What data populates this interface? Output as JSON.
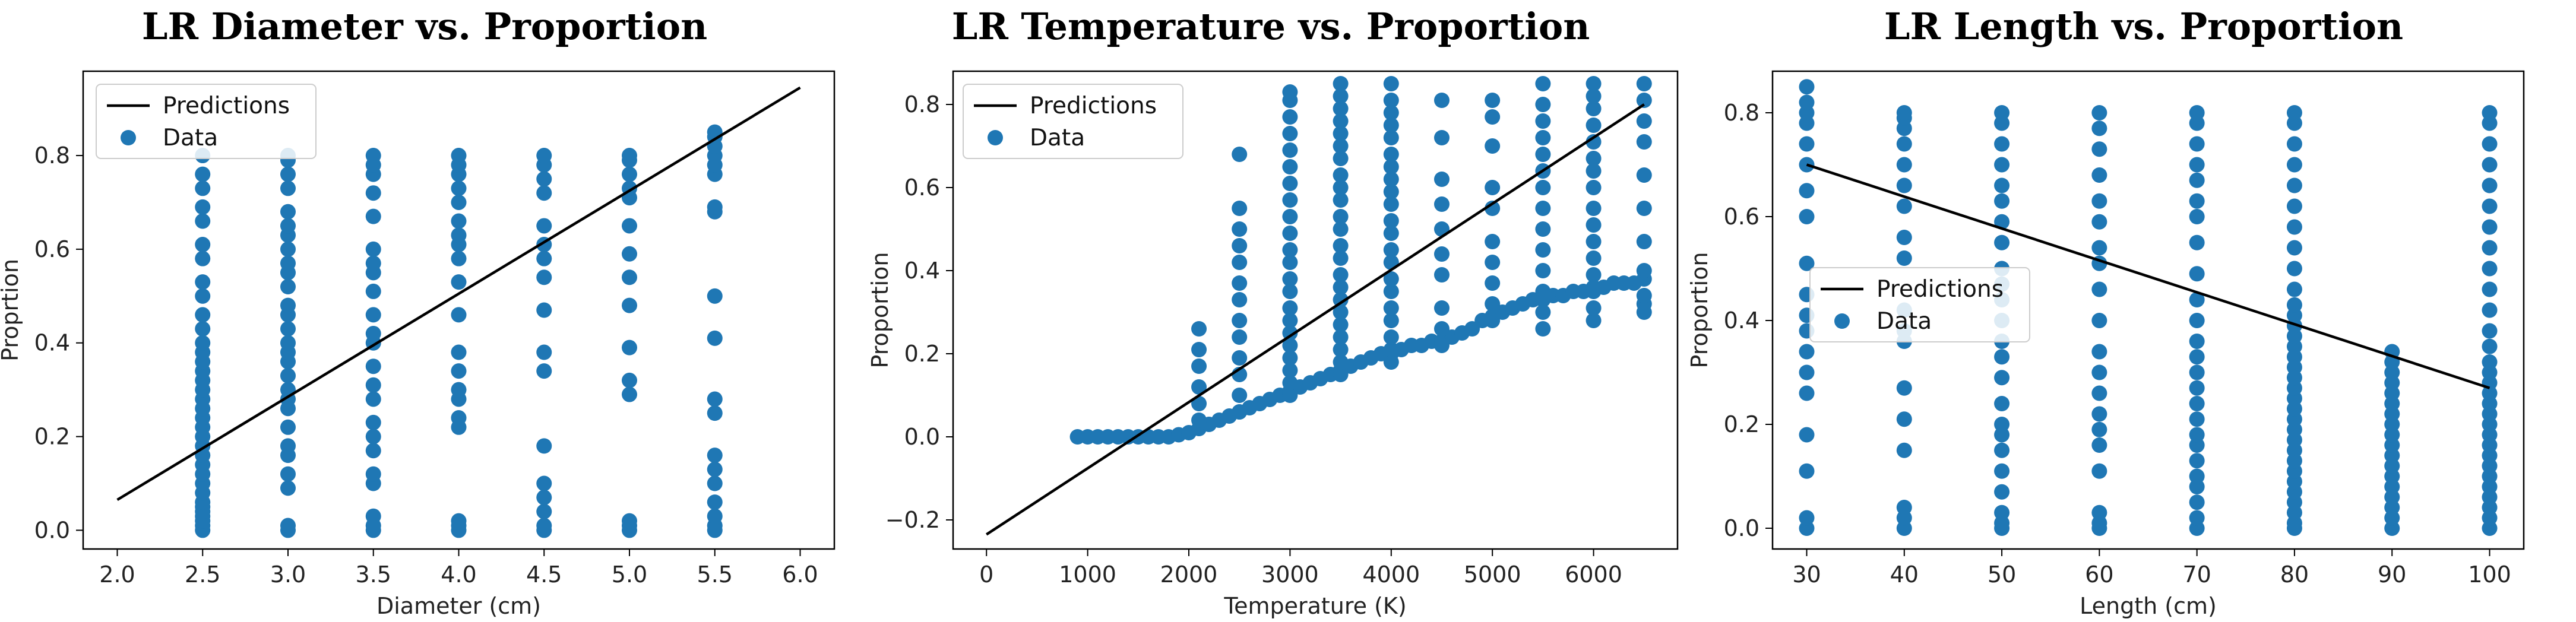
{
  "colors": {
    "data": "#1f77b4",
    "prediction": "#000000",
    "axis": "#000000",
    "legend_border": "#cccccc"
  },
  "chart_data": [
    {
      "type": "scatter",
      "title": "LR Diameter vs. Proportion",
      "xlabel": "Diameter (cm)",
      "ylabel": "Proprtion",
      "xlim": [
        1.8,
        6.2
      ],
      "ylim": [
        -0.04,
        0.98
      ],
      "xticks": [
        "2.0",
        "2.5",
        "3.0",
        "3.5",
        "4.0",
        "4.5",
        "5.0",
        "5.5",
        "6.0"
      ],
      "yticks": [
        "0.0",
        "0.2",
        "0.4",
        "0.6",
        "0.8"
      ],
      "legend": {
        "position": "top-left",
        "entries": [
          "Predictions",
          "Data"
        ]
      },
      "prediction": {
        "x": [
          2.0,
          6.0
        ],
        "y": [
          0.065,
          0.945
        ]
      },
      "series": [
        {
          "name": "Data",
          "x": 2.5,
          "y": [
            0.0,
            0.01,
            0.02,
            0.03,
            0.04,
            0.05,
            0.06,
            0.08,
            0.1,
            0.12,
            0.14,
            0.16,
            0.18,
            0.2,
            0.22,
            0.24,
            0.26,
            0.28,
            0.3,
            0.32,
            0.34,
            0.36,
            0.38,
            0.4,
            0.43,
            0.46,
            0.5,
            0.53,
            0.58,
            0.61,
            0.66,
            0.69,
            0.73,
            0.76,
            0.8
          ]
        },
        {
          "name": "Data",
          "x": 3.0,
          "y": [
            0.0,
            0.01,
            0.09,
            0.12,
            0.16,
            0.18,
            0.22,
            0.26,
            0.28,
            0.3,
            0.33,
            0.36,
            0.38,
            0.4,
            0.43,
            0.46,
            0.48,
            0.52,
            0.55,
            0.57,
            0.6,
            0.63,
            0.65,
            0.68,
            0.73,
            0.76,
            0.79,
            0.8
          ]
        },
        {
          "name": "Data",
          "x": 3.5,
          "y": [
            0.0,
            0.01,
            0.03,
            0.1,
            0.12,
            0.17,
            0.2,
            0.23,
            0.28,
            0.31,
            0.35,
            0.4,
            0.42,
            0.46,
            0.51,
            0.55,
            0.57,
            0.6,
            0.67,
            0.72,
            0.76,
            0.78,
            0.8
          ]
        },
        {
          "name": "Data",
          "x": 4.0,
          "y": [
            0.0,
            0.01,
            0.02,
            0.22,
            0.24,
            0.28,
            0.3,
            0.34,
            0.38,
            0.46,
            0.53,
            0.58,
            0.61,
            0.63,
            0.66,
            0.7,
            0.73,
            0.76,
            0.78,
            0.8
          ]
        },
        {
          "name": "Data",
          "x": 4.5,
          "y": [
            0.0,
            0.01,
            0.04,
            0.07,
            0.1,
            0.18,
            0.34,
            0.38,
            0.47,
            0.54,
            0.58,
            0.61,
            0.65,
            0.72,
            0.75,
            0.78,
            0.8
          ]
        },
        {
          "name": "Data",
          "x": 5.0,
          "y": [
            0.0,
            0.01,
            0.02,
            0.29,
            0.32,
            0.39,
            0.48,
            0.54,
            0.59,
            0.65,
            0.71,
            0.73,
            0.76,
            0.79,
            0.8
          ]
        },
        {
          "name": "Data",
          "x": 5.5,
          "y": [
            0.0,
            0.01,
            0.03,
            0.06,
            0.1,
            0.13,
            0.16,
            0.25,
            0.28,
            0.41,
            0.5,
            0.68,
            0.69,
            0.76,
            0.78,
            0.8,
            0.82,
            0.84,
            0.85
          ]
        }
      ]
    },
    {
      "type": "scatter",
      "title": "LR Temperature vs. Proportion",
      "xlabel": "Temperature (K)",
      "ylabel": "Proportion",
      "xlim": [
        -330,
        6830
      ],
      "ylim": [
        -0.27,
        0.88
      ],
      "xticks": [
        "0",
        "1000",
        "2000",
        "3000",
        "4000",
        "5000",
        "6000"
      ],
      "xtick_values": [
        0,
        1000,
        2000,
        3000,
        4000,
        5000,
        6000
      ],
      "yticks": [
        "−0.2",
        "0.0",
        "0.2",
        "0.4",
        "0.6",
        "0.8"
      ],
      "ytick_values": [
        -0.2,
        0.0,
        0.2,
        0.4,
        0.6,
        0.8
      ],
      "legend": {
        "position": "top-left",
        "entries": [
          "Predictions",
          "Data"
        ]
      },
      "prediction": {
        "x": [
          0,
          6500
        ],
        "y": [
          -0.235,
          0.8
        ]
      },
      "series": [
        {
          "name": "Data",
          "x": [
            900,
            1000,
            1100,
            1200,
            1300,
            1400,
            1500,
            1600,
            1700,
            1800,
            1900,
            2000,
            2100,
            2200,
            2300,
            2400,
            2500,
            2600,
            2700,
            2800,
            2900,
            3000,
            3100,
            3200,
            3300,
            3400,
            3500,
            3600,
            3700,
            3800,
            3900,
            4000,
            4100,
            4200,
            4300,
            4400,
            4500,
            4600,
            4700,
            4800,
            4900,
            5000,
            5100,
            5200,
            5300,
            5400,
            5500,
            5600,
            5700,
            5800,
            5900,
            6000,
            6100,
            6200,
            6300,
            6400,
            6500
          ],
          "y": [
            0.0,
            0.0,
            0.0,
            0.0,
            0.0,
            0.0,
            0.0,
            0.0,
            0.0,
            0.0,
            0.005,
            0.01,
            0.02,
            0.03,
            0.04,
            0.05,
            0.06,
            0.07,
            0.08,
            0.09,
            0.1,
            0.11,
            0.12,
            0.13,
            0.14,
            0.15,
            0.16,
            0.17,
            0.18,
            0.19,
            0.2,
            0.2,
            0.21,
            0.22,
            0.22,
            0.23,
            0.23,
            0.24,
            0.25,
            0.26,
            0.28,
            0.29,
            0.3,
            0.31,
            0.32,
            0.33,
            0.33,
            0.34,
            0.34,
            0.35,
            0.35,
            0.36,
            0.36,
            0.37,
            0.37,
            0.37,
            0.38
          ]
        },
        {
          "name": "Data",
          "x": [
            2100,
            2100,
            2100,
            2100,
            2100,
            2100
          ],
          "y": [
            0.04,
            0.08,
            0.12,
            0.17,
            0.21,
            0.26
          ]
        },
        {
          "name": "Data",
          "x": [
            2500,
            2500,
            2500,
            2500,
            2500,
            2500,
            2500,
            2500,
            2500,
            2500,
            2500,
            2500,
            2500
          ],
          "y": [
            0.06,
            0.1,
            0.15,
            0.19,
            0.24,
            0.28,
            0.33,
            0.37,
            0.42,
            0.46,
            0.5,
            0.55,
            0.68
          ]
        },
        {
          "name": "Data",
          "x": [
            3000,
            3000,
            3000,
            3000,
            3000,
            3000,
            3000,
            3000,
            3000,
            3000,
            3000,
            3000,
            3000,
            3000,
            3000,
            3000,
            3000,
            3000,
            3000,
            3000,
            3000,
            3000
          ],
          "y": [
            0.1,
            0.13,
            0.16,
            0.19,
            0.22,
            0.25,
            0.28,
            0.31,
            0.35,
            0.38,
            0.42,
            0.45,
            0.49,
            0.53,
            0.57,
            0.61,
            0.65,
            0.69,
            0.73,
            0.77,
            0.81,
            0.83
          ]
        },
        {
          "name": "Data",
          "x": [
            3500,
            3500,
            3500,
            3500,
            3500,
            3500,
            3500,
            3500,
            3500,
            3500,
            3500,
            3500,
            3500,
            3500,
            3500,
            3500,
            3500,
            3500,
            3500,
            3500,
            3500,
            3500,
            3500
          ],
          "y": [
            0.15,
            0.18,
            0.21,
            0.24,
            0.27,
            0.3,
            0.33,
            0.36,
            0.39,
            0.43,
            0.46,
            0.5,
            0.53,
            0.57,
            0.6,
            0.63,
            0.67,
            0.7,
            0.73,
            0.76,
            0.79,
            0.82,
            0.85
          ]
        },
        {
          "name": "Data",
          "x": [
            4000,
            4000,
            4000,
            4000,
            4000,
            4000,
            4000,
            4000,
            4000,
            4000,
            4000,
            4000,
            4000,
            4000,
            4000,
            4000,
            4000,
            4000,
            4000,
            4000,
            4000
          ],
          "y": [
            0.18,
            0.21,
            0.24,
            0.28,
            0.31,
            0.35,
            0.38,
            0.42,
            0.45,
            0.49,
            0.52,
            0.56,
            0.59,
            0.62,
            0.65,
            0.68,
            0.72,
            0.75,
            0.78,
            0.81,
            0.85
          ]
        },
        {
          "name": "Data",
          "x": [
            4500,
            4500,
            4500,
            4500,
            4500,
            4500,
            4500,
            4500,
            4500,
            4500
          ],
          "y": [
            0.22,
            0.26,
            0.31,
            0.39,
            0.44,
            0.5,
            0.56,
            0.62,
            0.72,
            0.81
          ]
        },
        {
          "name": "Data",
          "x": [
            5000,
            5000,
            5000,
            5000,
            5000,
            5000,
            5000,
            5000,
            5000,
            5000
          ],
          "y": [
            0.28,
            0.32,
            0.37,
            0.42,
            0.47,
            0.55,
            0.6,
            0.7,
            0.77,
            0.81
          ]
        },
        {
          "name": "Data",
          "x": [
            5500,
            5500,
            5500,
            5500,
            5500,
            5500,
            5500,
            5500,
            5500,
            5500,
            5500,
            5500,
            5500,
            5500
          ],
          "y": [
            0.26,
            0.3,
            0.35,
            0.4,
            0.45,
            0.5,
            0.55,
            0.6,
            0.64,
            0.68,
            0.72,
            0.76,
            0.8,
            0.85
          ]
        },
        {
          "name": "Data",
          "x": [
            6000,
            6000,
            6000,
            6000,
            6000,
            6000,
            6000,
            6000,
            6000,
            6000,
            6000,
            6000,
            6000,
            6000,
            6000,
            6000
          ],
          "y": [
            0.28,
            0.31,
            0.35,
            0.39,
            0.43,
            0.47,
            0.51,
            0.55,
            0.6,
            0.64,
            0.67,
            0.71,
            0.75,
            0.79,
            0.82,
            0.85
          ]
        },
        {
          "name": "Data",
          "x": [
            6500,
            6500,
            6500,
            6500,
            6500,
            6500,
            6500,
            6500,
            6500,
            6500,
            6500
          ],
          "y": [
            0.3,
            0.32,
            0.34,
            0.4,
            0.47,
            0.55,
            0.63,
            0.71,
            0.76,
            0.81,
            0.85
          ]
        }
      ]
    },
    {
      "type": "scatter",
      "title": "LR Length vs. Proportion",
      "xlabel": "Length (cm)",
      "ylabel": "Proportion",
      "xlim": [
        26.5,
        103.5
      ],
      "ylim": [
        -0.04,
        0.88
      ],
      "xticks": [
        "30",
        "40",
        "50",
        "60",
        "70",
        "80",
        "90",
        "100"
      ],
      "yticks": [
        "0.0",
        "0.2",
        "0.4",
        "0.6",
        "0.8"
      ],
      "legend": {
        "position": "center-left",
        "entries": [
          "Predictions",
          "Data"
        ]
      },
      "prediction": {
        "x": [
          30,
          100
        ],
        "y": [
          0.7,
          0.27
        ]
      },
      "series": [
        {
          "name": "Data",
          "x": 30,
          "y": [
            0.0,
            0.02,
            0.11,
            0.18,
            0.26,
            0.3,
            0.34,
            0.38,
            0.41,
            0.45,
            0.51,
            0.6,
            0.65,
            0.7,
            0.74,
            0.78,
            0.8,
            0.82,
            0.85
          ]
        },
        {
          "name": "Data",
          "x": 40,
          "y": [
            0.0,
            0.02,
            0.04,
            0.15,
            0.21,
            0.27,
            0.36,
            0.38,
            0.42,
            0.52,
            0.56,
            0.62,
            0.66,
            0.7,
            0.74,
            0.77,
            0.79,
            0.8
          ]
        },
        {
          "name": "Data",
          "x": 50,
          "y": [
            0.0,
            0.01,
            0.03,
            0.07,
            0.11,
            0.15,
            0.18,
            0.2,
            0.24,
            0.29,
            0.33,
            0.36,
            0.4,
            0.44,
            0.47,
            0.5,
            0.55,
            0.59,
            0.63,
            0.66,
            0.7,
            0.74,
            0.78,
            0.8
          ]
        },
        {
          "name": "Data",
          "x": 60,
          "y": [
            0.0,
            0.01,
            0.03,
            0.11,
            0.16,
            0.19,
            0.22,
            0.26,
            0.3,
            0.34,
            0.4,
            0.46,
            0.51,
            0.54,
            0.59,
            0.63,
            0.68,
            0.73,
            0.77,
            0.8
          ]
        },
        {
          "name": "Data",
          "x": 70,
          "y": [
            0.0,
            0.02,
            0.05,
            0.08,
            0.1,
            0.13,
            0.16,
            0.18,
            0.21,
            0.24,
            0.27,
            0.3,
            0.33,
            0.36,
            0.4,
            0.44,
            0.49,
            0.55,
            0.6,
            0.63,
            0.67,
            0.7,
            0.74,
            0.78,
            0.8
          ]
        },
        {
          "name": "Data",
          "x": 80,
          "y": [
            0.0,
            0.01,
            0.03,
            0.05,
            0.07,
            0.09,
            0.11,
            0.13,
            0.15,
            0.17,
            0.19,
            0.21,
            0.23,
            0.25,
            0.27,
            0.29,
            0.31,
            0.33,
            0.35,
            0.37,
            0.39,
            0.41,
            0.43,
            0.46,
            0.5,
            0.54,
            0.58,
            0.62,
            0.66,
            0.7,
            0.74,
            0.78,
            0.8
          ]
        },
        {
          "name": "Data",
          "x": 90,
          "y": [
            0.0,
            0.02,
            0.04,
            0.06,
            0.08,
            0.1,
            0.12,
            0.14,
            0.16,
            0.18,
            0.2,
            0.22,
            0.24,
            0.26,
            0.28,
            0.3,
            0.32,
            0.34
          ]
        },
        {
          "name": "Data",
          "x": 100,
          "y": [
            0.0,
            0.02,
            0.04,
            0.06,
            0.08,
            0.1,
            0.12,
            0.14,
            0.16,
            0.18,
            0.2,
            0.22,
            0.24,
            0.26,
            0.28,
            0.3,
            0.32,
            0.35,
            0.38,
            0.42,
            0.46,
            0.5,
            0.54,
            0.58,
            0.62,
            0.66,
            0.7,
            0.74,
            0.78,
            0.8
          ]
        }
      ]
    }
  ]
}
